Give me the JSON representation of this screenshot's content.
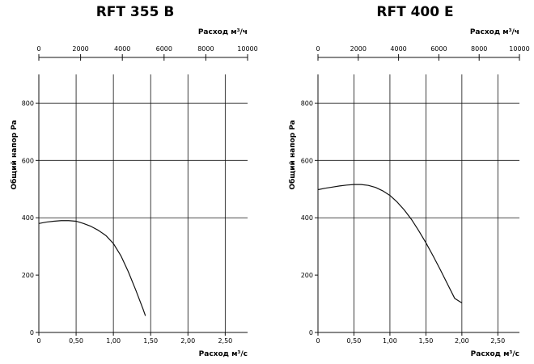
{
  "chart_data": [
    {
      "type": "line",
      "title": "RFT 355 B",
      "top_xlabel": "Расход м³/ч",
      "top_xlim": [
        0,
        10000
      ],
      "top_ticks": [
        "0",
        "2000",
        "4000",
        "6000",
        "8000",
        "10000"
      ],
      "xlabel": "Расход м³/с",
      "xlim": [
        0,
        2.8
      ],
      "xticks": [
        "0",
        "0,50",
        "1,00",
        "1,50",
        "2,00",
        "2,50"
      ],
      "ylabel": "Общий напор Pa",
      "ylim": [
        0,
        900
      ],
      "yticks": [
        "0",
        "200",
        "400",
        "600",
        "800"
      ],
      "grid": true,
      "series": [
        {
          "x": [
            0,
            0.1,
            0.2,
            0.3,
            0.4,
            0.5,
            0.6,
            0.7,
            0.8,
            0.9,
            1.0,
            1.1,
            1.2,
            1.3,
            1.4,
            1.43
          ],
          "y": [
            380,
            385,
            388,
            390,
            390,
            388,
            380,
            370,
            356,
            338,
            310,
            268,
            212,
            148,
            80,
            58
          ]
        }
      ]
    },
    {
      "type": "line",
      "title": "RFT 400 E",
      "top_xlabel": "Расход м³/ч",
      "top_xlim": [
        0,
        10000
      ],
      "top_ticks": [
        "0",
        "2000",
        "4000",
        "6000",
        "8000",
        "10000"
      ],
      "xlabel": "Расход м³/с",
      "xlim": [
        0,
        2.8
      ],
      "xticks": [
        "0",
        "0,50",
        "1,00",
        "1,50",
        "2,00",
        "2,50"
      ],
      "ylabel": "Общий напор Pa",
      "ylim": [
        0,
        900
      ],
      "yticks": [
        "0",
        "200",
        "400",
        "600",
        "800"
      ],
      "grid": true,
      "series": [
        {
          "x": [
            0,
            0.1,
            0.2,
            0.3,
            0.4,
            0.5,
            0.6,
            0.7,
            0.8,
            0.9,
            1.0,
            1.1,
            1.2,
            1.3,
            1.4,
            1.5,
            1.6,
            1.7,
            1.8,
            1.9,
            2.0
          ],
          "y": [
            498,
            503,
            507,
            511,
            514,
            516,
            516,
            513,
            506,
            494,
            478,
            455,
            427,
            394,
            355,
            313,
            267,
            219,
            169,
            119,
            103
          ]
        }
      ]
    }
  ]
}
